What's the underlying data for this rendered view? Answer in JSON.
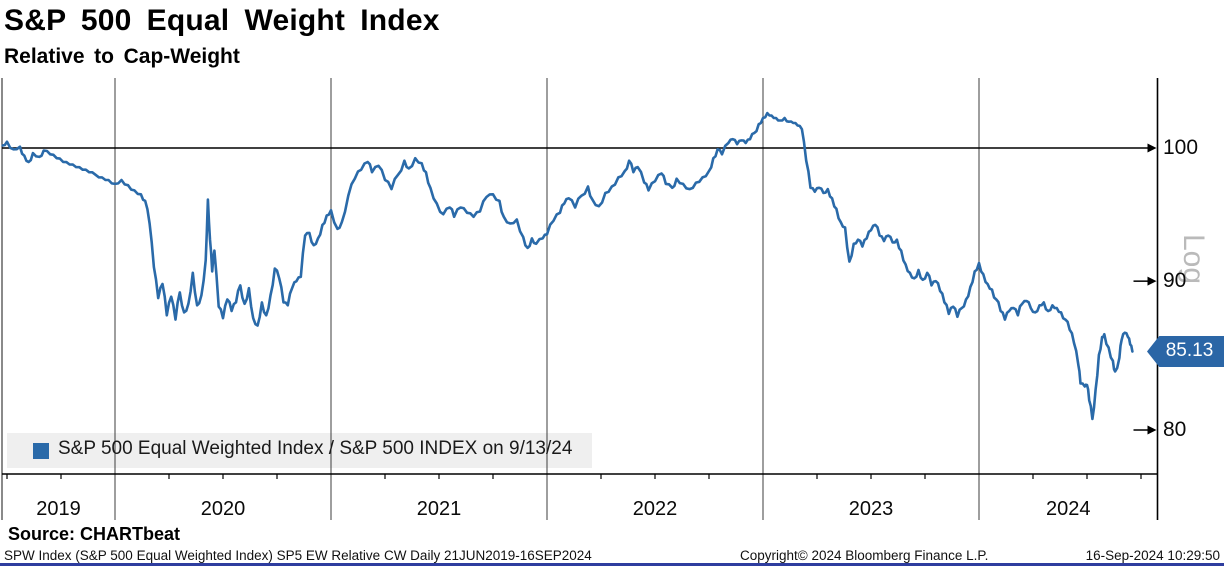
{
  "header": {
    "title": "S&P 500 Equal Weight Index",
    "subtitle": "Relative to Cap-Weight"
  },
  "legend": {
    "label": "S&P 500 Equal Weighted Index / S&P 500 INDEX on 9/13/24"
  },
  "badge": {
    "value": "85.13"
  },
  "axis_labels": {
    "scale": "Log",
    "y_ticks": [
      "100",
      "90",
      "80"
    ],
    "x_ticks": [
      "2019",
      "2020",
      "2021",
      "2022",
      "2023",
      "2024"
    ]
  },
  "source": {
    "label": "Source: CHARTbeat"
  },
  "footer": {
    "left": "SPW Index (S&P 500 Equal Weighted Index) SP5 EW Relative CW  Daily 21JUN2019-16SEP2024",
    "center": "Copyright© 2024 Bloomberg Finance L.P.",
    "right": "16-Sep-2024 10:29:50"
  },
  "colors": {
    "line": "#2A6AA9",
    "badge_bg": "#2B66A6",
    "legend_bg": "#EFEFEF",
    "log_label": "#BABABA",
    "grid": "#3C3C3C",
    "axis": "#000000",
    "bottom_bar": "#2E3D9F"
  },
  "chart_data": {
    "type": "line",
    "title": "S&P 500 Equal Weight Index",
    "subtitle": "Relative to Cap-Weight",
    "x_axis": {
      "ticks": [
        2019,
        2020,
        2021,
        2022,
        2023,
        2024
      ],
      "range": [
        2019.477,
        2024.83
      ],
      "unit": "year",
      "grid": true
    },
    "y_axis": {
      "scale": "log",
      "ticks": [
        100,
        90,
        80
      ],
      "range": [
        79,
        103.5
      ],
      "side": "right",
      "label": "Log"
    },
    "reference_line": 100,
    "last_value": 85.13,
    "series": [
      {
        "name": "S&P 500 Equal Weighted Index / S&P 500 INDEX on 9/13/24",
        "points": [
          [
            2019.48,
            100.2
          ],
          [
            2019.5,
            100.5
          ],
          [
            2019.53,
            99.9
          ],
          [
            2019.56,
            100.1
          ],
          [
            2019.58,
            99.4
          ],
          [
            2019.6,
            98.9
          ],
          [
            2019.62,
            99.6
          ],
          [
            2019.65,
            99.3
          ],
          [
            2019.67,
            99.8
          ],
          [
            2019.7,
            99.5
          ],
          [
            2019.73,
            99.2
          ],
          [
            2019.76,
            98.9
          ],
          [
            2019.79,
            98.7
          ],
          [
            2019.82,
            98.5
          ],
          [
            2019.85,
            98.3
          ],
          [
            2019.88,
            98.1
          ],
          [
            2019.91,
            97.9
          ],
          [
            2019.94,
            97.7
          ],
          [
            2019.97,
            97.5
          ],
          [
            2020.0,
            97.2
          ],
          [
            2020.03,
            97.5
          ],
          [
            2020.06,
            97.1
          ],
          [
            2020.09,
            96.7
          ],
          [
            2020.12,
            96.4
          ],
          [
            2020.14,
            95.9
          ],
          [
            2020.16,
            94.2
          ],
          [
            2020.18,
            91.0
          ],
          [
            2020.2,
            88.8
          ],
          [
            2020.22,
            89.8
          ],
          [
            2020.24,
            87.6
          ],
          [
            2020.26,
            88.9
          ],
          [
            2020.28,
            87.3
          ],
          [
            2020.3,
            89.2
          ],
          [
            2020.32,
            87.8
          ],
          [
            2020.34,
            88.4
          ],
          [
            2020.36,
            90.6
          ],
          [
            2020.38,
            88.3
          ],
          [
            2020.4,
            89.0
          ],
          [
            2020.42,
            91.5
          ],
          [
            2020.43,
            96.0
          ],
          [
            2020.44,
            93.0
          ],
          [
            2020.45,
            90.7
          ],
          [
            2020.46,
            92.2
          ],
          [
            2020.48,
            88.2
          ],
          [
            2020.5,
            87.4
          ],
          [
            2020.52,
            88.7
          ],
          [
            2020.54,
            87.9
          ],
          [
            2020.56,
            88.5
          ],
          [
            2020.58,
            89.7
          ],
          [
            2020.6,
            88.4
          ],
          [
            2020.62,
            89.5
          ],
          [
            2020.64,
            87.4
          ],
          [
            2020.66,
            86.9
          ],
          [
            2020.68,
            88.5
          ],
          [
            2020.7,
            87.6
          ],
          [
            2020.72,
            89.0
          ],
          [
            2020.74,
            90.9
          ],
          [
            2020.76,
            90.2
          ],
          [
            2020.78,
            88.5
          ],
          [
            2020.8,
            88.3
          ],
          [
            2020.82,
            89.5
          ],
          [
            2020.84,
            90.0
          ],
          [
            2020.86,
            90.3
          ],
          [
            2020.88,
            93.3
          ],
          [
            2020.9,
            93.5
          ],
          [
            2020.92,
            92.6
          ],
          [
            2020.94,
            93.1
          ],
          [
            2020.96,
            94.1
          ],
          [
            2020.98,
            94.8
          ],
          [
            2021.0,
            95.2
          ],
          [
            2021.03,
            93.8
          ],
          [
            2021.05,
            94.3
          ],
          [
            2021.08,
            96.3
          ],
          [
            2021.11,
            97.6
          ],
          [
            2021.14,
            98.3
          ],
          [
            2021.17,
            98.9
          ],
          [
            2021.19,
            98.1
          ],
          [
            2021.22,
            98.6
          ],
          [
            2021.25,
            97.5
          ],
          [
            2021.28,
            96.8
          ],
          [
            2021.31,
            97.9
          ],
          [
            2021.34,
            99.0
          ],
          [
            2021.36,
            98.4
          ],
          [
            2021.39,
            99.2
          ],
          [
            2021.42,
            98.8
          ],
          [
            2021.44,
            98.1
          ],
          [
            2021.46,
            96.9
          ],
          [
            2021.49,
            95.7
          ],
          [
            2021.52,
            94.9
          ],
          [
            2021.55,
            95.4
          ],
          [
            2021.57,
            94.7
          ],
          [
            2021.6,
            95.4
          ],
          [
            2021.63,
            95.0
          ],
          [
            2021.66,
            94.7
          ],
          [
            2021.69,
            95.1
          ],
          [
            2021.72,
            96.2
          ],
          [
            2021.75,
            96.4
          ],
          [
            2021.78,
            95.9
          ],
          [
            2021.8,
            94.7
          ],
          [
            2021.83,
            94.2
          ],
          [
            2021.86,
            94.5
          ],
          [
            2021.89,
            93.2
          ],
          [
            2021.91,
            92.4
          ],
          [
            2021.93,
            93.1
          ],
          [
            2021.95,
            92.7
          ],
          [
            2021.98,
            93.1
          ],
          [
            2022.0,
            93.4
          ],
          [
            2022.03,
            94.4
          ],
          [
            2022.06,
            95.0
          ],
          [
            2022.08,
            95.7
          ],
          [
            2022.1,
            96.1
          ],
          [
            2022.13,
            95.4
          ],
          [
            2022.16,
            96.3
          ],
          [
            2022.19,
            97.0
          ],
          [
            2022.21,
            96.0
          ],
          [
            2022.24,
            95.5
          ],
          [
            2022.27,
            96.5
          ],
          [
            2022.3,
            97.0
          ],
          [
            2022.33,
            97.7
          ],
          [
            2022.36,
            98.2
          ],
          [
            2022.38,
            99.0
          ],
          [
            2022.4,
            98.1
          ],
          [
            2022.42,
            98.5
          ],
          [
            2022.45,
            97.3
          ],
          [
            2022.47,
            96.7
          ],
          [
            2022.5,
            97.4
          ],
          [
            2022.53,
            98.0
          ],
          [
            2022.55,
            97.2
          ],
          [
            2022.58,
            96.9
          ],
          [
            2022.6,
            97.6
          ],
          [
            2022.63,
            97.2
          ],
          [
            2022.66,
            96.8
          ],
          [
            2022.69,
            97.3
          ],
          [
            2022.72,
            97.7
          ],
          [
            2022.75,
            98.2
          ],
          [
            2022.77,
            99.2
          ],
          [
            2022.79,
            99.9
          ],
          [
            2022.81,
            99.5
          ],
          [
            2022.84,
            100.4
          ],
          [
            2022.86,
            100.7
          ],
          [
            2022.88,
            100.3
          ],
          [
            2022.9,
            100.6
          ],
          [
            2022.92,
            100.4
          ],
          [
            2022.94,
            100.7
          ],
          [
            2022.96,
            101.2
          ],
          [
            2022.98,
            101.9
          ],
          [
            2023.0,
            102.4
          ],
          [
            2023.02,
            102.8
          ],
          [
            2023.04,
            102.6
          ],
          [
            2023.06,
            102.4
          ],
          [
            2023.08,
            102.2
          ],
          [
            2023.1,
            102.4
          ],
          [
            2023.12,
            102.1
          ],
          [
            2023.14,
            102.0
          ],
          [
            2023.16,
            101.8
          ],
          [
            2023.18,
            101.5
          ],
          [
            2023.2,
            99.0
          ],
          [
            2023.22,
            96.9
          ],
          [
            2023.24,
            96.6
          ],
          [
            2023.26,
            96.9
          ],
          [
            2023.28,
            96.5
          ],
          [
            2023.3,
            96.8
          ],
          [
            2023.32,
            96.1
          ],
          [
            2023.34,
            95.3
          ],
          [
            2023.36,
            94.3
          ],
          [
            2023.38,
            93.9
          ],
          [
            2023.4,
            91.4
          ],
          [
            2023.42,
            92.7
          ],
          [
            2023.44,
            93.0
          ],
          [
            2023.46,
            92.5
          ],
          [
            2023.48,
            93.1
          ],
          [
            2023.5,
            93.7
          ],
          [
            2023.52,
            94.1
          ],
          [
            2023.54,
            93.3
          ],
          [
            2023.56,
            92.9
          ],
          [
            2023.58,
            93.3
          ],
          [
            2023.6,
            92.8
          ],
          [
            2023.62,
            93.0
          ],
          [
            2023.64,
            92.2
          ],
          [
            2023.66,
            91.2
          ],
          [
            2023.68,
            90.6
          ],
          [
            2023.7,
            90.2
          ],
          [
            2023.72,
            90.8
          ],
          [
            2023.74,
            90.1
          ],
          [
            2023.76,
            90.6
          ],
          [
            2023.78,
            89.7
          ],
          [
            2023.8,
            90.0
          ],
          [
            2023.82,
            89.3
          ],
          [
            2023.84,
            88.5
          ],
          [
            2023.86,
            87.7
          ],
          [
            2023.88,
            88.2
          ],
          [
            2023.9,
            87.5
          ],
          [
            2023.92,
            88.1
          ],
          [
            2023.94,
            88.7
          ],
          [
            2023.96,
            89.6
          ],
          [
            2023.98,
            90.7
          ],
          [
            2024.0,
            91.3
          ],
          [
            2024.02,
            90.5
          ],
          [
            2024.04,
            89.8
          ],
          [
            2024.06,
            89.4
          ],
          [
            2024.08,
            88.7
          ],
          [
            2024.1,
            87.9
          ],
          [
            2024.12,
            87.3
          ],
          [
            2024.14,
            87.9
          ],
          [
            2024.16,
            88.1
          ],
          [
            2024.18,
            87.6
          ],
          [
            2024.2,
            88.4
          ],
          [
            2024.22,
            88.6
          ],
          [
            2024.24,
            88.1
          ],
          [
            2024.26,
            87.8
          ],
          [
            2024.28,
            88.3
          ],
          [
            2024.3,
            88.5
          ],
          [
            2024.32,
            87.9
          ],
          [
            2024.34,
            88.3
          ],
          [
            2024.36,
            88.1
          ],
          [
            2024.38,
            87.8
          ],
          [
            2024.4,
            87.3
          ],
          [
            2024.42,
            86.6
          ],
          [
            2024.44,
            85.7
          ],
          [
            2024.46,
            84.2
          ],
          [
            2024.47,
            83.0
          ],
          [
            2024.49,
            82.8
          ],
          [
            2024.5,
            82.9
          ],
          [
            2024.51,
            81.9
          ],
          [
            2024.525,
            80.7
          ],
          [
            2024.54,
            82.6
          ],
          [
            2024.555,
            84.9
          ],
          [
            2024.57,
            86.1
          ],
          [
            2024.58,
            86.3
          ],
          [
            2024.6,
            85.4
          ],
          [
            2024.62,
            84.5
          ],
          [
            2024.63,
            83.8
          ],
          [
            2024.65,
            84.7
          ],
          [
            2024.66,
            85.9
          ],
          [
            2024.675,
            86.4
          ],
          [
            2024.69,
            86.1
          ],
          [
            2024.7,
            85.6
          ],
          [
            2024.71,
            85.13
          ]
        ]
      }
    ]
  }
}
